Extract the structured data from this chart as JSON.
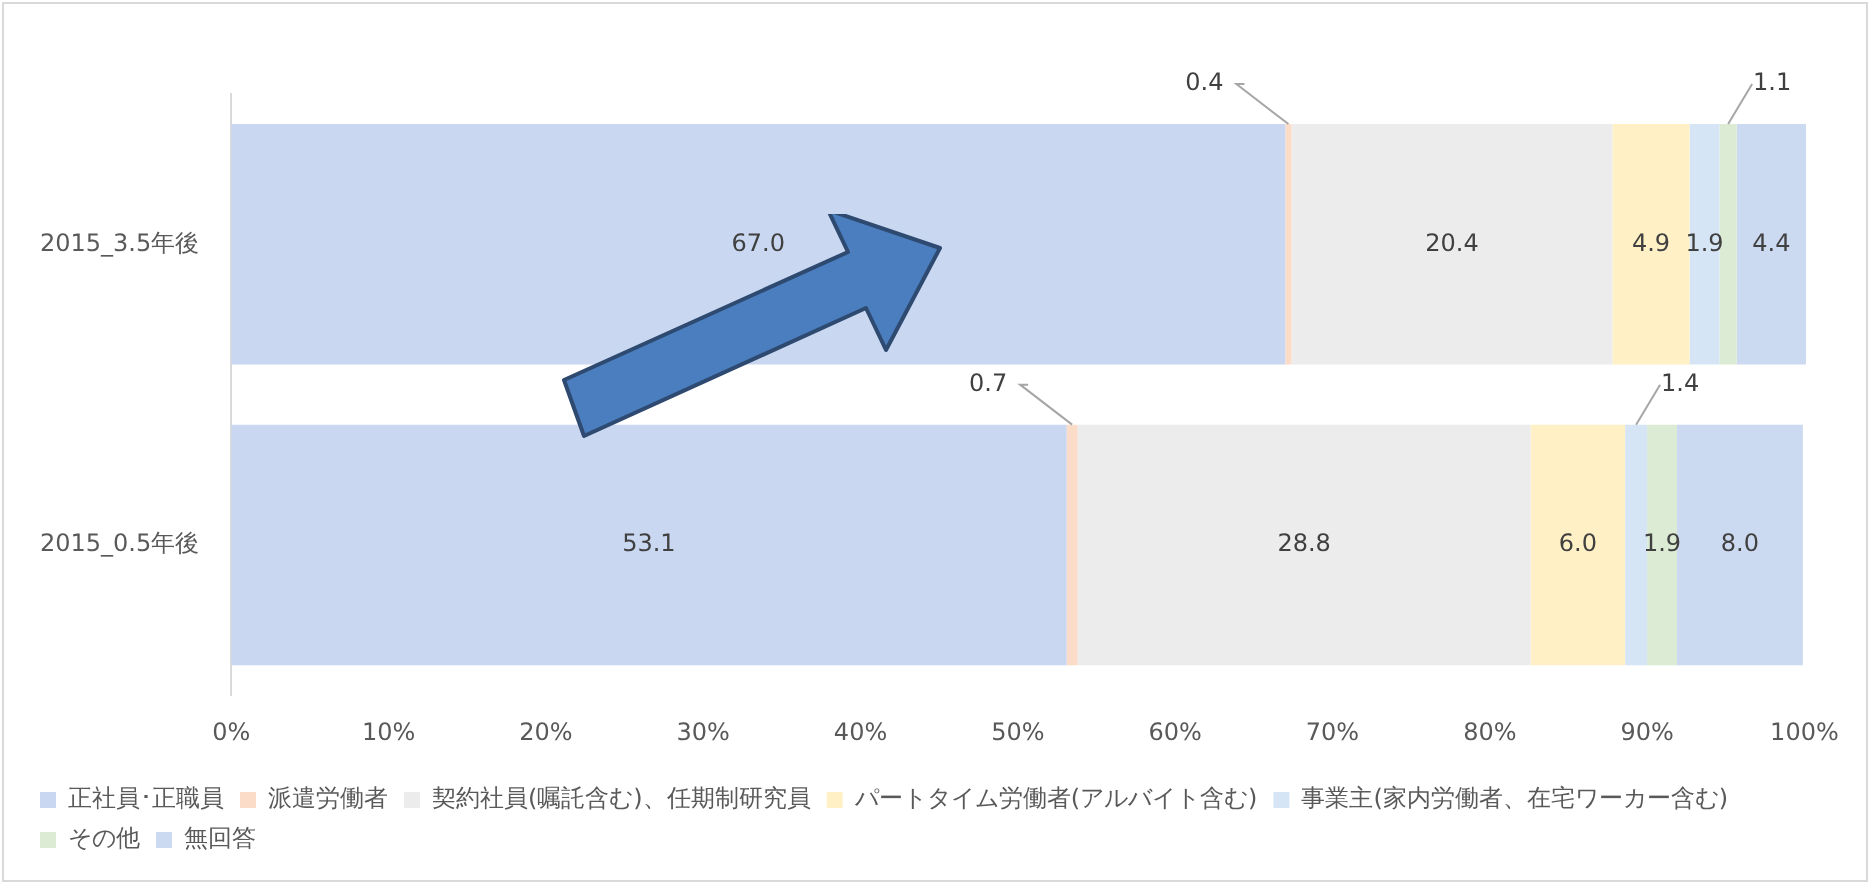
{
  "chart_data": {
    "type": "bar",
    "orientation": "horizontal",
    "stacked": true,
    "categories": [
      "2015_3.5年後",
      "2015_0.5年後"
    ],
    "series": [
      {
        "name": "正社員･正職員",
        "color": "#c9d8f0",
        "values": [
          67.0,
          53.1
        ],
        "value_labels": [
          "67.0",
          "53.1"
        ]
      },
      {
        "name": "派遣労働者",
        "color": "#fbdcc8",
        "values": [
          0.4,
          0.7
        ],
        "value_labels": [
          "0.4",
          "0.7"
        ]
      },
      {
        "name": "契約社員(嘱託含む)、任期制研究員",
        "color": "#ececec",
        "values": [
          20.4,
          28.8
        ],
        "value_labels": [
          "20.4",
          "28.8"
        ]
      },
      {
        "name": "パートタイム労働者(アルバイト含む)",
        "color": "#fff0c6",
        "values": [
          4.9,
          6.0
        ],
        "value_labels": [
          "4.9",
          "6.0"
        ]
      },
      {
        "name": "事業主(家内労働者、在宅ワーカー含む)",
        "color": "#d6e5f6",
        "values": [
          1.9,
          1.4
        ],
        "value_labels": [
          "1.9",
          "1.4"
        ]
      },
      {
        "name": "その他",
        "color": "#dcebd4",
        "values": [
          1.1,
          1.9
        ],
        "value_labels": [
          "1.1",
          "1.9"
        ]
      },
      {
        "name": "無回答",
        "color": "#ccdaf1",
        "values": [
          4.4,
          8.0
        ],
        "value_labels": [
          "4.4",
          "8.0"
        ]
      }
    ],
    "xlim": [
      0,
      100.1
    ],
    "xticks": [
      {
        "value": 0,
        "label": "0%"
      },
      {
        "value": 10,
        "label": "10%"
      },
      {
        "value": 20,
        "label": "20%"
      },
      {
        "value": 30,
        "label": "30%"
      },
      {
        "value": 40,
        "label": "40%"
      },
      {
        "value": 50,
        "label": "50%"
      },
      {
        "value": 60,
        "label": "60%"
      },
      {
        "value": 70,
        "label": "70%"
      },
      {
        "value": 80,
        "label": "80%"
      },
      {
        "value": 90,
        "label": "90%"
      },
      {
        "value": 100,
        "label": "100%"
      }
    ],
    "grid": false,
    "legend": "bottom"
  }
}
